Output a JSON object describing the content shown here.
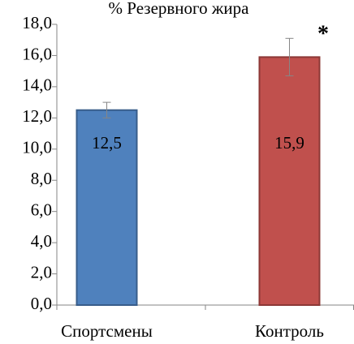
{
  "chart_data": {
    "type": "bar",
    "title": "% Резервного жира",
    "categories": [
      "Спортсмены",
      "Контроль"
    ],
    "values": [
      12.5,
      15.9
    ],
    "value_labels": [
      "12,5",
      "15,9"
    ],
    "errors": [
      0.5,
      1.2
    ],
    "colors": [
      "#4f81bd",
      "#c0504d"
    ],
    "annotation": "*",
    "ylim": [
      0,
      18
    ],
    "yticks": [
      {
        "value": 0,
        "label": "0,0"
      },
      {
        "value": 2,
        "label": "2,0"
      },
      {
        "value": 4,
        "label": "4,0"
      },
      {
        "value": 6,
        "label": "6,0"
      },
      {
        "value": 8,
        "label": "8,0"
      },
      {
        "value": 10,
        "label": "10,0"
      },
      {
        "value": 12,
        "label": "12,0"
      },
      {
        "value": 14,
        "label": "14,0"
      },
      {
        "value": 16,
        "label": "16,0"
      },
      {
        "value": 18,
        "label": "18,0"
      }
    ],
    "grid": false
  }
}
